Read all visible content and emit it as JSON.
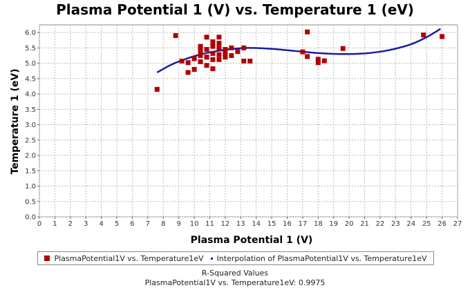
{
  "chart_data": {
    "type": "scatter",
    "title": "Plasma Potential 1 (V) vs. Temperature 1 (eV)",
    "xlabel": "Plasma Potential 1 (V)",
    "ylabel": "Temperature 1 (eV)",
    "xlim": [
      0,
      27
    ],
    "ylim": [
      0,
      6.25
    ],
    "x_ticks": [
      "0",
      "1",
      "2",
      "3",
      "4",
      "5",
      "6",
      "7",
      "8",
      "9",
      "10",
      "11",
      "12",
      "13",
      "14",
      "15",
      "16",
      "17",
      "18",
      "19",
      "20",
      "21",
      "22",
      "23",
      "24",
      "25",
      "26",
      "27"
    ],
    "y_ticks": [
      "0.0",
      "0.5",
      "1.0",
      "1.5",
      "2.0",
      "2.5",
      "3.0",
      "3.5",
      "4.0",
      "4.5",
      "5.0",
      "5.5",
      "6.0"
    ],
    "grid": true,
    "legend_position": "bottom",
    "colors": {
      "scatter": "#b00000",
      "curve": "#1a1aa0",
      "grid": "#b8b8b8"
    },
    "series": [
      {
        "name": "PlasmaPotential1V vs. Temperature1eV",
        "kind": "scatter",
        "points": [
          [
            7.6,
            4.15
          ],
          [
            8.8,
            5.9
          ],
          [
            9.2,
            5.07
          ],
          [
            9.6,
            4.7
          ],
          [
            9.6,
            5.02
          ],
          [
            10.0,
            4.8
          ],
          [
            10.0,
            5.15
          ],
          [
            10.4,
            5.05
          ],
          [
            10.4,
            5.25
          ],
          [
            10.4,
            5.4
          ],
          [
            10.4,
            5.55
          ],
          [
            10.8,
            4.93
          ],
          [
            10.8,
            5.2
          ],
          [
            10.8,
            5.45
          ],
          [
            10.8,
            5.85
          ],
          [
            11.2,
            4.82
          ],
          [
            11.2,
            5.12
          ],
          [
            11.2,
            5.32
          ],
          [
            11.2,
            5.55
          ],
          [
            11.2,
            5.7
          ],
          [
            11.6,
            5.12
          ],
          [
            11.6,
            5.28
          ],
          [
            11.6,
            5.5
          ],
          [
            11.6,
            5.65
          ],
          [
            11.6,
            5.85
          ],
          [
            12.0,
            5.2
          ],
          [
            12.0,
            5.32
          ],
          [
            12.0,
            5.45
          ],
          [
            12.4,
            5.25
          ],
          [
            12.4,
            5.5
          ],
          [
            12.8,
            5.38
          ],
          [
            13.2,
            5.07
          ],
          [
            13.2,
            5.5
          ],
          [
            13.6,
            5.07
          ],
          [
            17.0,
            5.37
          ],
          [
            17.3,
            6.02
          ],
          [
            17.3,
            5.22
          ],
          [
            18.0,
            5.02
          ],
          [
            18.0,
            5.13
          ],
          [
            18.4,
            5.08
          ],
          [
            19.6,
            5.48
          ],
          [
            24.8,
            5.92
          ],
          [
            26.0,
            5.87
          ]
        ]
      },
      {
        "name": "Interpolation of PlasmaPotential1V vs. Temperature1eV",
        "kind": "line",
        "points": [
          [
            7.6,
            4.7
          ],
          [
            8.5,
            4.95
          ],
          [
            9.5,
            5.15
          ],
          [
            10.5,
            5.3
          ],
          [
            11.5,
            5.4
          ],
          [
            12.5,
            5.47
          ],
          [
            13.5,
            5.5
          ],
          [
            15,
            5.47
          ],
          [
            16.5,
            5.4
          ],
          [
            18,
            5.33
          ],
          [
            19.5,
            5.3
          ],
          [
            21,
            5.32
          ],
          [
            22.5,
            5.42
          ],
          [
            24,
            5.62
          ],
          [
            25,
            5.85
          ],
          [
            25.9,
            6.12
          ]
        ]
      }
    ]
  },
  "legend": {
    "item1": "PlasmaPotential1V vs. Temperature1eV",
    "item2": "Interpolation of PlasmaPotential1V vs. Temperature1eV"
  },
  "rsquared": {
    "title": "R-Squared Values",
    "line": "PlasmaPotential1V vs. Temperature1eV: 0.9975"
  }
}
